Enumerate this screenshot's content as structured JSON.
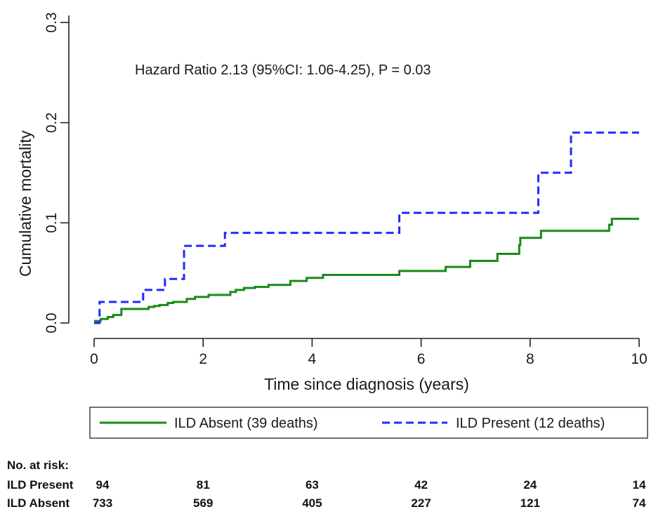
{
  "colors": {
    "absent": "#1a8a1a",
    "present": "#1f2bff",
    "axis": "#222222"
  },
  "annotation": "Hazard Ratio 2.13 (95%CI: 1.06-4.25), P = 0.03",
  "legend": {
    "absent_label": "ILD Absent (39 deaths)",
    "present_label": "ILD Present (12 deaths)"
  },
  "risk_table": {
    "header": "No. at risk:",
    "rows": [
      {
        "label": "ILD Present",
        "values": [
          "94",
          "81",
          "63",
          "42",
          "24",
          "14"
        ]
      },
      {
        "label": "ILD Absent",
        "values": [
          "733",
          "569",
          "405",
          "227",
          "121",
          "74"
        ]
      }
    ]
  },
  "chart_data": {
    "type": "line",
    "step": true,
    "xlabel": "Time since diagnosis (years)",
    "ylabel": "Cumulative mortality",
    "xlim": [
      0,
      10
    ],
    "ylim": [
      0,
      0.3
    ],
    "xticks": [
      0,
      2,
      4,
      6,
      8,
      10
    ],
    "yticks": [
      "0.0",
      "0.1",
      "0.2",
      "0.3"
    ],
    "grid": false,
    "legend_position": "bottom",
    "series": [
      {
        "name": "ILD Absent (39 deaths)",
        "style": "solid",
        "x": [
          0,
          0.12,
          0.25,
          0.35,
          0.5,
          1.0,
          1.1,
          1.2,
          1.35,
          1.45,
          1.7,
          1.85,
          2.1,
          2.5,
          2.6,
          2.75,
          2.95,
          3.2,
          3.6,
          3.9,
          4.2,
          5.6,
          6.45,
          6.9,
          7.4,
          7.8,
          7.82,
          8.2,
          9.45,
          9.5,
          10.0
        ],
        "y": [
          0.002,
          0.004,
          0.006,
          0.008,
          0.014,
          0.016,
          0.017,
          0.018,
          0.02,
          0.021,
          0.024,
          0.026,
          0.028,
          0.031,
          0.033,
          0.035,
          0.036,
          0.038,
          0.042,
          0.045,
          0.048,
          0.052,
          0.056,
          0.062,
          0.069,
          0.078,
          0.085,
          0.092,
          0.098,
          0.104,
          0.104
        ]
      },
      {
        "name": "ILD Present (12 deaths)",
        "style": "dashed",
        "x": [
          0,
          0.1,
          0.9,
          1.3,
          1.65,
          2.4,
          5.6,
          8.15,
          8.75,
          10.0
        ],
        "y": [
          0.0,
          0.021,
          0.033,
          0.044,
          0.077,
          0.09,
          0.11,
          0.15,
          0.19,
          0.19
        ]
      }
    ]
  }
}
